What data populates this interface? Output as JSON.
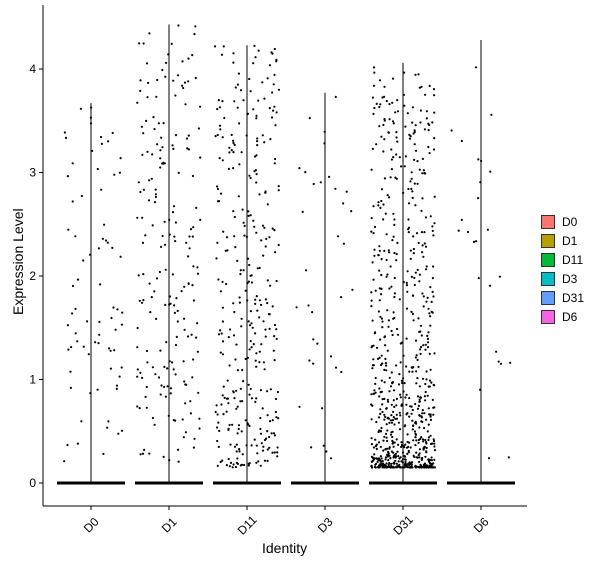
{
  "chart_data": {
    "type": "violin",
    "xlabel": "Identity",
    "ylabel": "Expression Level",
    "categories": [
      "D0",
      "D1",
      "D11",
      "D3",
      "D31",
      "D6"
    ],
    "yticks": [
      0,
      1,
      2,
      3,
      4
    ],
    "ylim": [
      -0.25,
      4.5
    ],
    "grid": false,
    "legend_position": "right",
    "legend": [
      {
        "label": "D0",
        "color": "#F8766D"
      },
      {
        "label": "D1",
        "color": "#B79F00"
      },
      {
        "label": "D11",
        "color": "#00BA38"
      },
      {
        "label": "D3",
        "color": "#00BFC4"
      },
      {
        "label": "D31",
        "color": "#619CFF"
      },
      {
        "label": "D6",
        "color": "#F564E3"
      }
    ],
    "series": [
      {
        "name": "D0",
        "max": 3.67,
        "nonzero_points": 75
      },
      {
        "name": "D1",
        "max": 4.43,
        "nonzero_points": 200
      },
      {
        "name": "D11",
        "max": 4.23,
        "nonzero_points": 330
      },
      {
        "name": "D3",
        "max": 3.77,
        "nonzero_points": 35
      },
      {
        "name": "D31",
        "max": 4.06,
        "nonzero_points": 750
      },
      {
        "name": "D6",
        "max": 4.28,
        "nonzero_points": 25
      }
    ]
  }
}
